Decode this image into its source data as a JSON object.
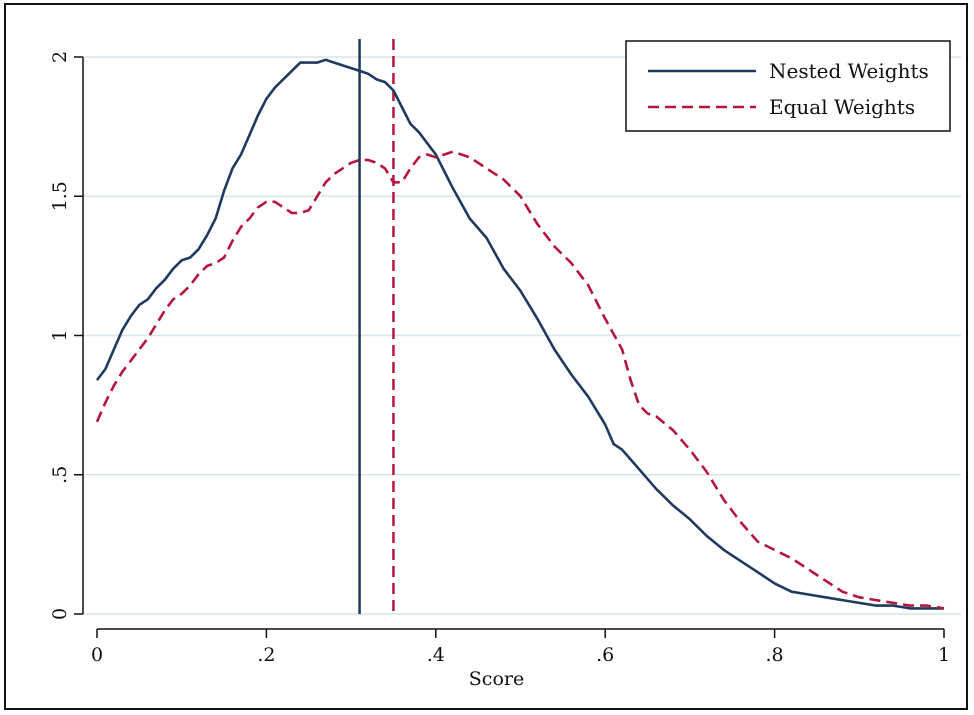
{
  "chart_data": {
    "type": "line",
    "title": "",
    "xlabel": "Score",
    "ylabel": "",
    "xlim": [
      0,
      1
    ],
    "ylim": [
      0,
      2
    ],
    "grid": true,
    "legend_position": "top-right",
    "x_ticks": [
      0,
      0.2,
      0.4,
      0.6,
      0.8,
      1
    ],
    "x_tick_labels": [
      "0",
      ".2",
      ".4",
      ".6",
      ".8",
      "1"
    ],
    "y_ticks": [
      0,
      0.5,
      1,
      1.5,
      2
    ],
    "y_tick_labels": [
      "0",
      ".5",
      "1",
      "1.5",
      "2"
    ],
    "series": [
      {
        "name": "Nested Weights",
        "style": "solid",
        "color": "#1f3a5f",
        "x": [
          0,
          0.01,
          0.02,
          0.03,
          0.04,
          0.05,
          0.06,
          0.07,
          0.08,
          0.09,
          0.1,
          0.11,
          0.12,
          0.13,
          0.14,
          0.15,
          0.16,
          0.17,
          0.18,
          0.19,
          0.2,
          0.21,
          0.22,
          0.23,
          0.24,
          0.25,
          0.26,
          0.27,
          0.28,
          0.29,
          0.3,
          0.31,
          0.32,
          0.33,
          0.34,
          0.35,
          0.36,
          0.37,
          0.38,
          0.39,
          0.4,
          0.42,
          0.44,
          0.46,
          0.48,
          0.5,
          0.52,
          0.54,
          0.56,
          0.58,
          0.6,
          0.61,
          0.62,
          0.64,
          0.66,
          0.68,
          0.7,
          0.72,
          0.74,
          0.76,
          0.78,
          0.8,
          0.82,
          0.84,
          0.86,
          0.88,
          0.9,
          0.92,
          0.94,
          0.96,
          0.98,
          1
        ],
        "y": [
          0.84,
          0.88,
          0.95,
          1.02,
          1.07,
          1.11,
          1.13,
          1.17,
          1.2,
          1.24,
          1.27,
          1.28,
          1.31,
          1.36,
          1.42,
          1.52,
          1.6,
          1.65,
          1.72,
          1.79,
          1.85,
          1.89,
          1.92,
          1.95,
          1.98,
          1.98,
          1.98,
          1.99,
          1.98,
          1.97,
          1.96,
          1.95,
          1.94,
          1.92,
          1.91,
          1.88,
          1.82,
          1.76,
          1.73,
          1.69,
          1.65,
          1.53,
          1.42,
          1.35,
          1.24,
          1.16,
          1.06,
          0.95,
          0.86,
          0.78,
          0.68,
          0.61,
          0.59,
          0.52,
          0.45,
          0.39,
          0.34,
          0.28,
          0.23,
          0.19,
          0.15,
          0.11,
          0.08,
          0.07,
          0.06,
          0.05,
          0.04,
          0.03,
          0.03,
          0.02,
          0.02,
          0.02
        ]
      },
      {
        "name": "Equal Weights",
        "style": "dashed",
        "color": "#b5163e",
        "x": [
          0,
          0.01,
          0.02,
          0.03,
          0.04,
          0.05,
          0.06,
          0.07,
          0.08,
          0.09,
          0.1,
          0.11,
          0.12,
          0.13,
          0.14,
          0.15,
          0.16,
          0.17,
          0.18,
          0.19,
          0.2,
          0.21,
          0.22,
          0.23,
          0.24,
          0.25,
          0.26,
          0.27,
          0.28,
          0.29,
          0.3,
          0.31,
          0.32,
          0.33,
          0.34,
          0.35,
          0.36,
          0.37,
          0.38,
          0.39,
          0.4,
          0.41,
          0.42,
          0.44,
          0.46,
          0.48,
          0.5,
          0.52,
          0.54,
          0.56,
          0.58,
          0.6,
          0.62,
          0.63,
          0.64,
          0.65,
          0.66,
          0.68,
          0.7,
          0.72,
          0.74,
          0.76,
          0.78,
          0.8,
          0.82,
          0.84,
          0.86,
          0.88,
          0.9,
          0.92,
          0.94,
          0.96,
          0.98,
          1
        ],
        "y": [
          0.69,
          0.76,
          0.82,
          0.87,
          0.91,
          0.95,
          0.99,
          1.04,
          1.09,
          1.13,
          1.15,
          1.18,
          1.22,
          1.25,
          1.26,
          1.28,
          1.34,
          1.39,
          1.42,
          1.46,
          1.48,
          1.48,
          1.46,
          1.44,
          1.44,
          1.45,
          1.5,
          1.55,
          1.58,
          1.6,
          1.62,
          1.63,
          1.63,
          1.62,
          1.6,
          1.55,
          1.55,
          1.6,
          1.64,
          1.65,
          1.64,
          1.65,
          1.66,
          1.64,
          1.6,
          1.56,
          1.5,
          1.4,
          1.32,
          1.26,
          1.18,
          1.06,
          0.95,
          0.84,
          0.75,
          0.72,
          0.71,
          0.66,
          0.59,
          0.51,
          0.41,
          0.33,
          0.26,
          0.23,
          0.2,
          0.16,
          0.12,
          0.08,
          0.06,
          0.05,
          0.04,
          0.03,
          0.03,
          0.02
        ]
      }
    ],
    "vertical_lines": [
      {
        "x": 0.31,
        "style": "solid",
        "color": "#1f3a5f",
        "series": "Nested Weights"
      },
      {
        "x": 0.35,
        "style": "dashed",
        "color": "#b5163e",
        "series": "Equal Weights"
      }
    ]
  },
  "colors": {
    "grid": "#d6e6ea",
    "axis": "#111111"
  }
}
